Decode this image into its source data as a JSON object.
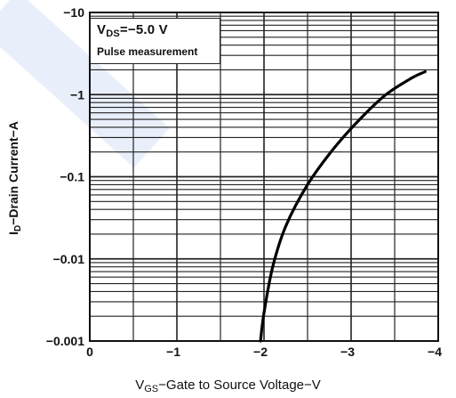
{
  "chart_data": {
    "type": "line",
    "y_scale": "log",
    "x": [
      -1.96,
      -2.0,
      -2.1,
      -2.25,
      -2.5,
      -2.8,
      -3.1,
      -3.4,
      -3.7,
      -3.85
    ],
    "y": [
      0.001,
      0.0022,
      0.008,
      0.025,
      0.08,
      0.22,
      0.5,
      1.0,
      1.6,
      1.9
    ],
    "xlim": [
      0,
      -4
    ],
    "ylim": [
      0.001,
      10
    ],
    "x_ticks": [
      0,
      -1,
      -2,
      -3,
      -4
    ],
    "x_tick_labels": [
      "0",
      "−1",
      "−2",
      "−3",
      "−4"
    ],
    "y_ticks": [
      0.001,
      0.01,
      0.1,
      1,
      10
    ],
    "y_tick_labels": [
      "−0.001",
      "−0.01",
      "−0.1",
      "−1",
      "−10"
    ],
    "xlabel_main": "V",
    "xlabel_sub": "GS",
    "xlabel_rest": "−Gate to Source Voltage−V",
    "ylabel_main": "I",
    "ylabel_sub": "D",
    "ylabel_rest": "−Drain Current−A",
    "annotation_main": "V",
    "annotation_sub": "DS",
    "annotation_rest": "=−5.0 V",
    "annotation_line2": "Pulse measurement",
    "grid": true,
    "line_color": "#000000"
  }
}
